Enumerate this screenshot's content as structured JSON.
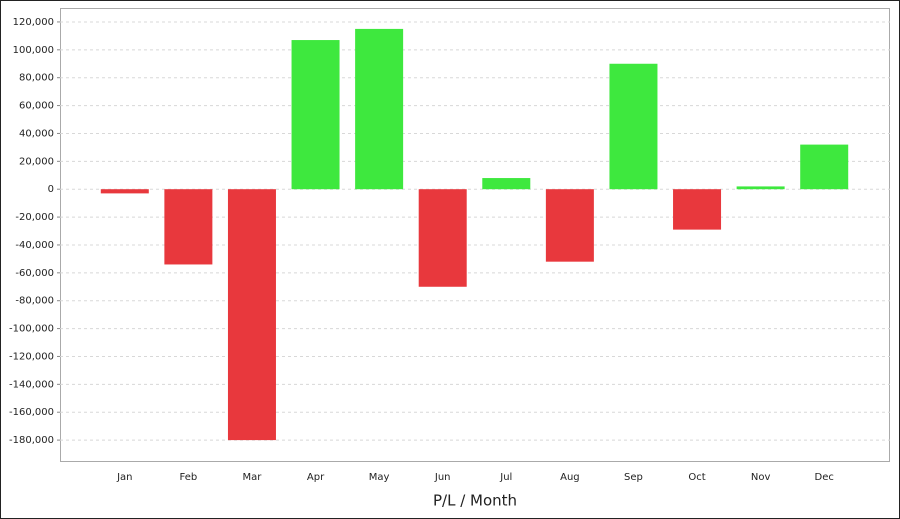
{
  "chart_data": {
    "type": "bar",
    "x_label": "P/L / Month",
    "categories": [
      "Jan",
      "Feb",
      "Mar",
      "Apr",
      "May",
      "Jun",
      "Jul",
      "Aug",
      "Sep",
      "Oct",
      "Nov",
      "Dec"
    ],
    "values": [
      -3000,
      -54000,
      -180000,
      107000,
      115000,
      -70000,
      8000,
      -52000,
      90000,
      -29000,
      2000,
      32000
    ],
    "positive_color": "#3ee83e",
    "negative_color": "#e8383d",
    "ylim": [
      -195000,
      130000
    ],
    "yticks": [
      {
        "value": -180000,
        "label": "-180,000"
      },
      {
        "value": -160000,
        "label": "-160,000"
      },
      {
        "value": -140000,
        "label": "-140,000"
      },
      {
        "value": -120000,
        "label": "-120,000"
      },
      {
        "value": -100000,
        "label": "-100,000"
      },
      {
        "value": -80000,
        "label": "-80,000"
      },
      {
        "value": -60000,
        "label": "-60,000"
      },
      {
        "value": -40000,
        "label": "-40,000"
      },
      {
        "value": -20000,
        "label": "-20,000"
      },
      0,
      {
        "value": 20000,
        "label": "20,000"
      },
      {
        "value": 40000,
        "label": "40,000"
      },
      {
        "value": 60000,
        "label": "60,000"
      },
      {
        "value": 80000,
        "label": "80,000"
      },
      {
        "value": 100000,
        "label": "100,000"
      },
      {
        "value": 120000,
        "label": "120,000"
      }
    ],
    "grid": true
  }
}
